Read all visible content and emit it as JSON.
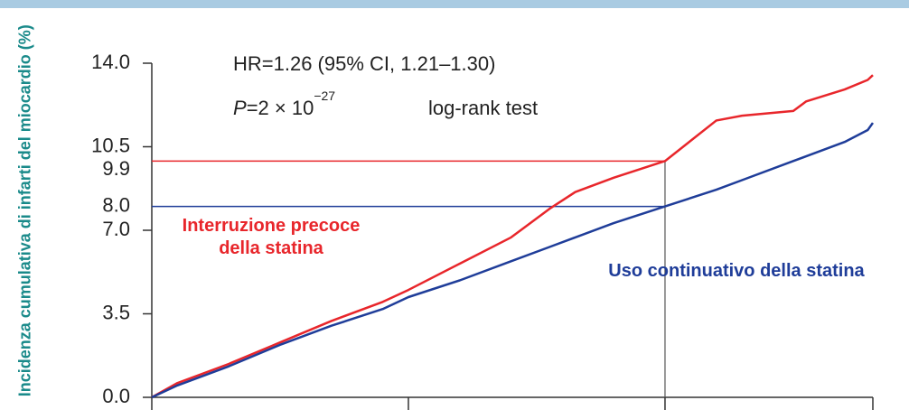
{
  "chart_data": {
    "type": "line",
    "ylabel": "Incidenza cumulativa di infarti del miocardio (%)",
    "annotations": [
      "HR=1.26 (95% CI, 1.21–1.30)",
      "P",
      "=2 × 10",
      "−27",
      "log-rank test"
    ],
    "x": [
      0,
      0.1,
      0.3,
      0.5,
      0.7,
      0.9,
      1.0,
      1.2,
      1.4,
      1.55,
      1.65,
      1.8,
      2.0,
      2.2,
      2.3,
      2.5,
      2.55,
      2.7,
      2.79,
      2.81
    ],
    "series": [
      {
        "name": "Interruzione precoce della statina",
        "color": "#e8262b",
        "values": [
          0,
          0.6,
          1.4,
          2.3,
          3.2,
          4.0,
          4.5,
          5.6,
          6.7,
          7.9,
          8.6,
          9.2,
          9.9,
          11.6,
          11.8,
          12.0,
          12.4,
          12.9,
          13.3,
          13.5
        ]
      },
      {
        "name": "Uso continuativo della statina",
        "color": "#1f3d99",
        "values": [
          0,
          0.5,
          1.3,
          2.2,
          3.0,
          3.7,
          4.2,
          4.9,
          5.7,
          6.3,
          6.7,
          7.3,
          8.0,
          8.7,
          9.1,
          9.9,
          10.1,
          10.7,
          11.2,
          11.5
        ]
      }
    ],
    "xlim": [
      0,
      2.81
    ],
    "xticks": [
      0,
      1,
      2,
      2.81
    ],
    "ylim": [
      0,
      14
    ],
    "yticks": [
      {
        "value": 0,
        "label": "0.0"
      },
      {
        "value": 3.5,
        "label": "3.5"
      },
      {
        "value": 7,
        "label": "7.0"
      },
      {
        "value": 10.5,
        "label": "10.5"
      },
      {
        "value": 14,
        "label": "14.0"
      }
    ],
    "reference_x": 2,
    "reference_lines": [
      {
        "value": 9.9,
        "color": "#e8262b"
      },
      {
        "value": 8,
        "label": "8.0",
        "color": "#1f3d99"
      }
    ],
    "ylabel_color": "#1a8a8a"
  }
}
